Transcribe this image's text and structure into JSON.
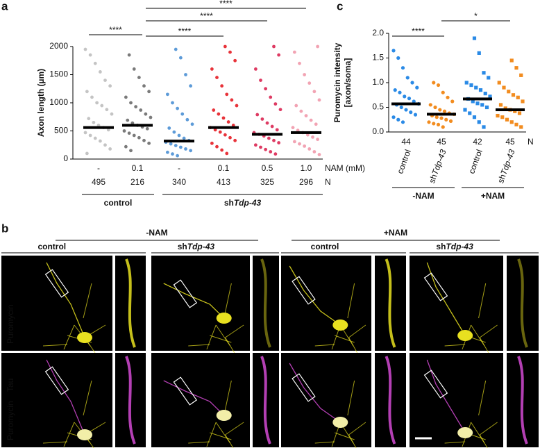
{
  "chart_data": [
    {
      "type": "scatter",
      "panel_label": "a",
      "ylabel": "Axon length (µm)",
      "ylim": [
        0,
        2000
      ],
      "yticks": [
        0,
        500,
        1000,
        1500,
        2000
      ],
      "categories": [
        "-",
        "0.1",
        "-",
        "0.1",
        "0.5",
        "1.0"
      ],
      "categories_label": "NAM (mM)",
      "n": [
        495,
        216,
        340,
        413,
        325,
        296
      ],
      "n_label": "N",
      "groups": [
        {
          "text": "control"
        },
        {
          "prefix": "sh",
          "italic": "Tdp-43"
        }
      ],
      "series": [
        {
          "color": "#c4c4c4",
          "values": [
            1950,
            1850,
            1700,
            1550,
            1400,
            1300,
            1200,
            1100,
            1000,
            950,
            880,
            800,
            720,
            650,
            600,
            560,
            520,
            470,
            420,
            370,
            320,
            250,
            180,
            100
          ]
        },
        {
          "color": "#7a7a7a",
          "values": [
            1850,
            1600,
            1450,
            1300,
            1200,
            1100,
            1000,
            930,
            870,
            800,
            740,
            690,
            640,
            600,
            570,
            540,
            500,
            460,
            420,
            380,
            330,
            280,
            220,
            150
          ]
        },
        {
          "color": "#5d9bd8",
          "values": [
            1950,
            1800,
            1500,
            1300,
            1150,
            1000,
            900,
            800,
            700,
            620,
            550,
            480,
            420,
            370,
            330,
            300,
            270,
            240,
            210,
            180,
            150,
            120,
            90,
            60
          ]
        },
        {
          "color": "#e8333a",
          "values": [
            2000,
            1900,
            1750,
            1600,
            1450,
            1300,
            1150,
            1050,
            950,
            870,
            800,
            730,
            660,
            600,
            560,
            520,
            480,
            430,
            380,
            330,
            280,
            220,
            160,
            100
          ]
        },
        {
          "color": "#de3b63",
          "values": [
            2000,
            1850,
            1600,
            1400,
            1250,
            1100,
            980,
            880,
            790,
            710,
            640,
            580,
            520,
            470,
            440,
            410,
            370,
            330,
            290,
            250,
            210,
            170,
            130,
            90
          ]
        },
        {
          "color": "#f2a3b3",
          "values": [
            2000,
            1900,
            1700,
            1500,
            1350,
            1200,
            1050,
            950,
            850,
            770,
            690,
            620,
            560,
            510,
            470,
            430,
            390,
            350,
            310,
            270,
            230,
            180,
            130,
            80
          ]
        }
      ],
      "medians": [
        560,
        600,
        320,
        560,
        440,
        470
      ],
      "annotations": [
        "****",
        "****",
        "****",
        "****"
      ]
    },
    {
      "type": "scatter",
      "panel_label": "c",
      "ylabel": [
        "Puromycin intensity",
        "[axon/soma]"
      ],
      "ylim": [
        0,
        2
      ],
      "yticks": [
        {
          "value": 0,
          "label": "0.0"
        },
        0.5,
        {
          "value": 1,
          "label": "1.0"
        },
        1.5,
        {
          "value": 2,
          "label": "2.0"
        }
      ],
      "categories": [
        {
          "text": "control"
        },
        {
          "prefix": "sh",
          "italic": "Tdp-43"
        },
        {
          "text": "control"
        },
        {
          "prefix": "sh",
          "italic": "Tdp-43"
        }
      ],
      "n": [
        44,
        45,
        42,
        45
      ],
      "n_label": "N",
      "groups": [
        {
          "text": "-NAM"
        },
        {
          "text": "+NAM"
        }
      ],
      "markers": [
        "circle",
        "circle",
        "square",
        "square"
      ],
      "series": [
        {
          "color": "#2a8ae6",
          "values": [
            1.65,
            1.5,
            1.3,
            1.1,
            1.0,
            0.9,
            0.85,
            0.8,
            0.72,
            0.68,
            0.62,
            0.57,
            0.55,
            0.5,
            0.45,
            0.4,
            0.35,
            0.3,
            0.25,
            0.2
          ]
        },
        {
          "color": "#f28c1f",
          "values": [
            1.0,
            0.95,
            0.8,
            0.7,
            0.62,
            0.55,
            0.5,
            0.45,
            0.42,
            0.38,
            0.36,
            0.33,
            0.3,
            0.28,
            0.25,
            0.22,
            0.2,
            0.17,
            0.15,
            0.1
          ]
        },
        {
          "color": "#2a8ae6",
          "values": [
            1.9,
            1.6,
            1.2,
            1.1,
            1.0,
            0.95,
            0.9,
            0.85,
            0.78,
            0.72,
            0.67,
            0.62,
            0.58,
            0.55,
            0.5,
            0.45,
            0.38,
            0.3,
            0.2,
            0.1
          ]
        },
        {
          "color": "#f28c1f",
          "values": [
            1.45,
            1.3,
            1.15,
            1.0,
            0.9,
            0.82,
            0.75,
            0.7,
            0.62,
            0.55,
            0.48,
            0.45,
            0.42,
            0.38,
            0.33,
            0.3,
            0.25,
            0.2,
            0.15,
            0.1
          ]
        }
      ],
      "medians": [
        0.57,
        0.36,
        0.67,
        0.45
      ],
      "annotations": [
        "****",
        "*"
      ]
    }
  ],
  "panel_b": {
    "panel_label": "b",
    "conditions": [
      {
        "label": "-NAM",
        "groups": [
          {
            "text": "control"
          },
          {
            "prefix": "sh",
            "italic": "Tdp-43"
          }
        ]
      },
      {
        "label": "+NAM",
        "groups": [
          {
            "text": "control"
          },
          {
            "prefix": "sh",
            "italic": "Tdp-43"
          }
        ]
      }
    ],
    "rows": [
      {
        "channels": [
          {
            "label": "Puromycin",
            "color": "#e8e020"
          }
        ]
      },
      {
        "channels": [
          {
            "label": "Tau",
            "color": "#d24ad2"
          },
          {
            "label": "Puromycin",
            "color": "#e8e020"
          }
        ]
      }
    ]
  }
}
